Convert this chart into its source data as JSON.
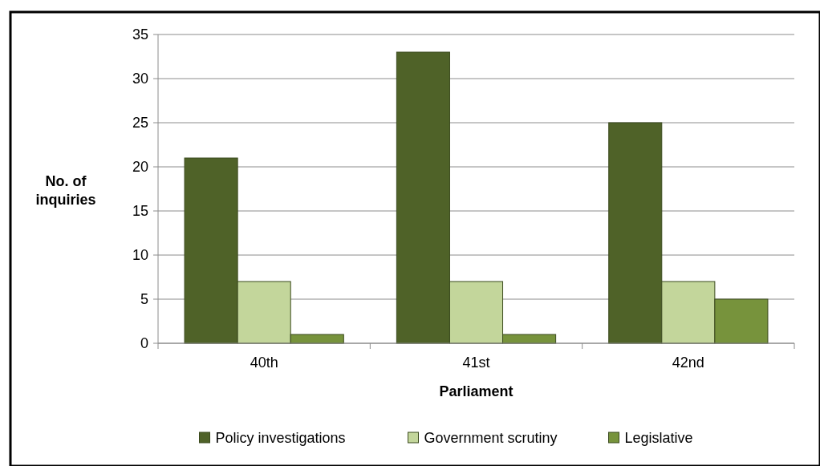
{
  "chart_data": {
    "type": "bar",
    "xlabel": "Parliament",
    "ylabel": "No. of inquiries",
    "categories": [
      "40th",
      "41st",
      "42nd"
    ],
    "series": [
      {
        "name": "Policy investigations",
        "color": "#4f6228",
        "values": [
          21,
          33,
          25
        ]
      },
      {
        "name": "Government scrutiny",
        "color": "#c3d69b",
        "values": [
          7,
          7,
          7
        ]
      },
      {
        "name": "Legislative",
        "color": "#77933c",
        "values": [
          1,
          1,
          5
        ]
      }
    ],
    "ylim": [
      0,
      35
    ],
    "yticks": [
      0,
      5,
      10,
      15,
      20,
      25,
      30,
      35
    ],
    "grid": "y",
    "legend": "bottom"
  }
}
